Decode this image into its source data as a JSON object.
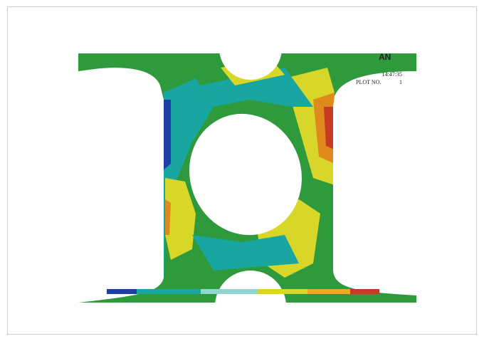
{
  "header": {
    "logo": "AN",
    "time": "14:47:35",
    "plot_label": "PLOT NO.",
    "plot_number": "1"
  }
}
